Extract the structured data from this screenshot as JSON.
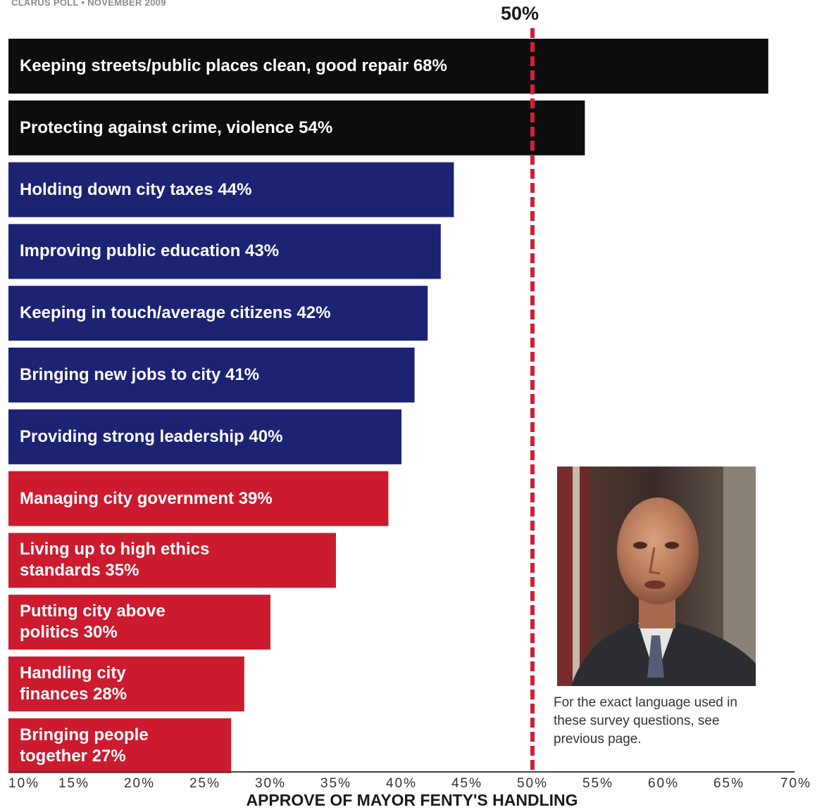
{
  "source": "CLARUS POLL • NOVEMBER 2009",
  "reference_label": "50%",
  "caption": "For the exact language used in these survey questions, see previous page.",
  "colors": {
    "black": "#0d0d0d",
    "blue": "#1c2373",
    "red": "#cc1b2e",
    "reference_line": "#d31f34"
  },
  "photo_icon": "mayor-portrait",
  "chart_data": {
    "type": "bar",
    "orientation": "horizontal",
    "xlabel": "APPROVE OF MAYOR FENTY'S HANDLING",
    "xlim": [
      10,
      70
    ],
    "ticks": [
      "10%",
      "15%",
      "20%",
      "25%",
      "30%",
      "35%",
      "40%",
      "45%",
      "50%",
      "55%",
      "60%",
      "65%",
      "70%"
    ],
    "reference_value": 50,
    "grid": false,
    "legend": "none",
    "categories": [
      "Keeping streets/public places clean, good repair",
      "Protecting against crime, violence",
      "Holding down city taxes",
      "Improving public education",
      "Keeping in touch/average citizens",
      "Bringing new jobs to city",
      "Providing strong leadership",
      "Managing city government",
      "Living up to high ethics standards",
      "Putting city above politics",
      "Handling city finances",
      "Bringing people together"
    ],
    "values": [
      68,
      54,
      44,
      43,
      42,
      41,
      40,
      39,
      35,
      30,
      28,
      27
    ],
    "labels": [
      "Keeping streets/public places clean, good repair  68%",
      "Protecting against crime, violence  54%",
      "Holding down city taxes  44%",
      "Improving public education 43%",
      "Keeping in touch/average citizens  42%",
      "Bringing new jobs to city  41%",
      "Providing strong leadership  40%",
      "Managing city government  39%",
      "Living up to high ethics\nstandards  35%",
      "Putting city above\npolitics  30%",
      "Handling city\nfinances  28%",
      "Bringing people\ntogether  27%"
    ],
    "bar_colors": [
      "black",
      "black",
      "blue",
      "blue",
      "blue",
      "blue",
      "blue",
      "red",
      "red",
      "red",
      "red",
      "red"
    ]
  }
}
